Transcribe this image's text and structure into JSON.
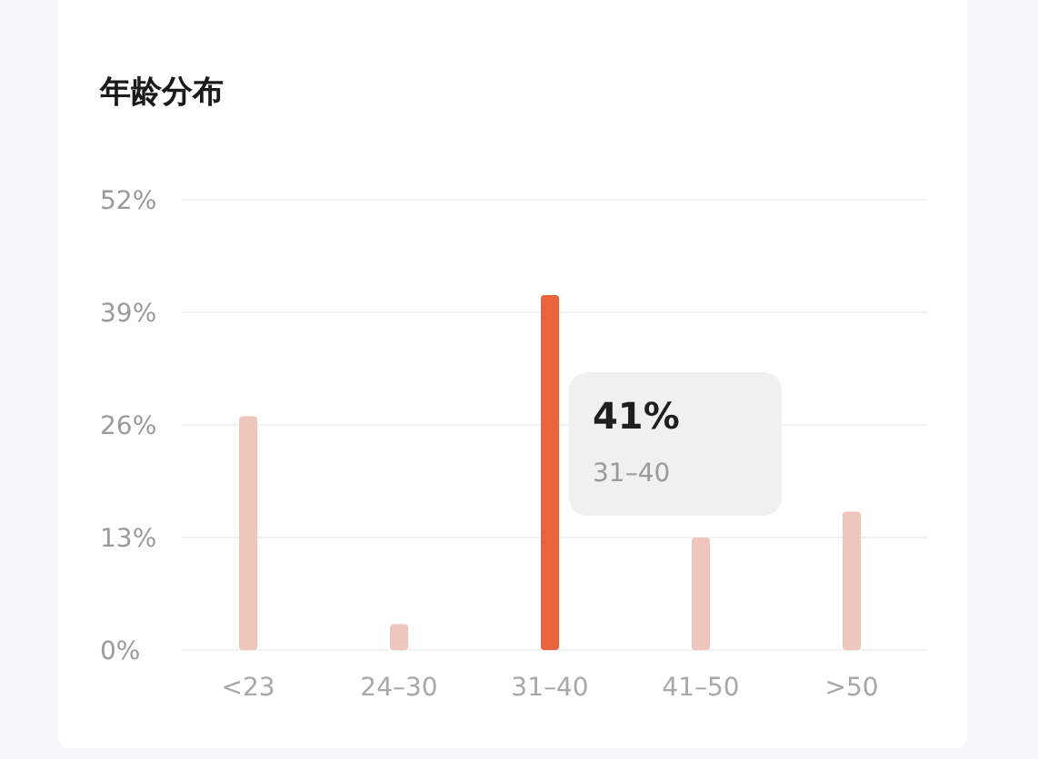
{
  "chart_data": {
    "type": "bar",
    "title": "年龄分布",
    "categories": [
      "<23",
      "24–30",
      "31–40",
      "41–50",
      ">50"
    ],
    "values": [
      27,
      3,
      41,
      13,
      16
    ],
    "colors": [
      "#eec6bc",
      "#eec6bc",
      "#e8643c",
      "#eec6bc",
      "#eec6bc"
    ],
    "annotations": [
      "41%",
      "31–40"
    ],
    "ylim": [
      0,
      52
    ],
    "yticks": [
      {
        "value": 0,
        "label": "0%"
      },
      {
        "value": 13,
        "label": "13%"
      },
      {
        "value": 26,
        "label": "26%"
      },
      {
        "value": 39,
        "label": "39%"
      },
      {
        "value": 52,
        "label": "52%"
      }
    ],
    "grid": "y"
  }
}
